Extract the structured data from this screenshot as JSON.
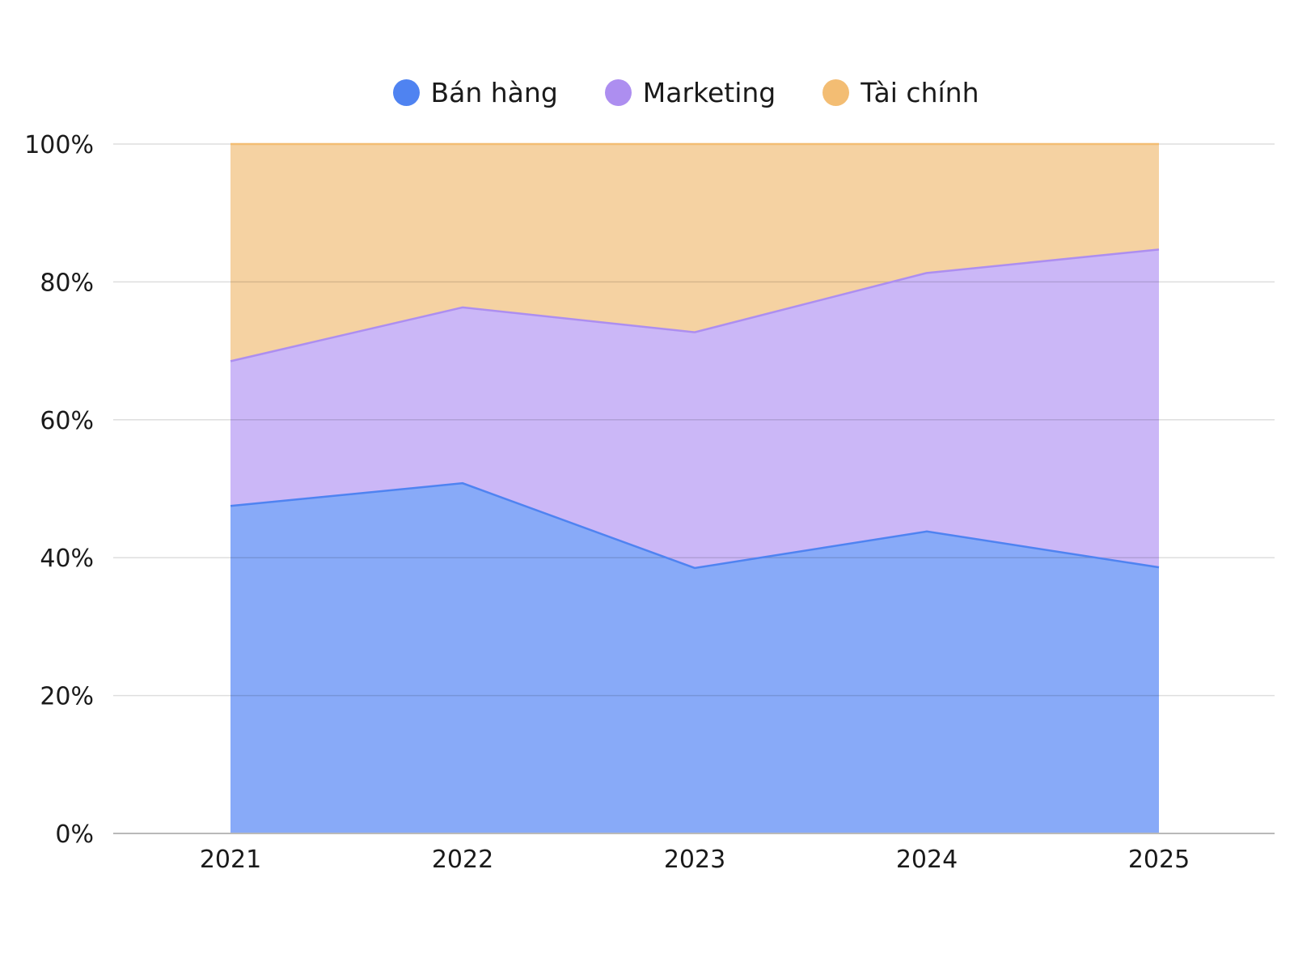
{
  "chart_data": {
    "type": "area",
    "stacked": "percent",
    "categories": [
      "2021",
      "2022",
      "2023",
      "2024",
      "2025"
    ],
    "series": [
      {
        "name": "Bán hàng",
        "color": "#4f83f1",
        "fill": "#88aaf8",
        "values": [
          47.5,
          50.8,
          38.5,
          43.8,
          38.6
        ]
      },
      {
        "name": "Marketing",
        "color": "#ad8ef0",
        "fill": "#cbb7f7",
        "values": [
          21.0,
          25.5,
          34.2,
          37.5,
          46.1
        ]
      },
      {
        "name": "Tài chính",
        "color": "#f3bd73",
        "fill": "#f5d2a2",
        "values": [
          31.5,
          23.7,
          27.3,
          18.7,
          15.3
        ]
      }
    ],
    "y_ticks": [
      "0%",
      "20%",
      "40%",
      "60%",
      "80%",
      "100%"
    ],
    "ylim": [
      0,
      100
    ],
    "grid": true,
    "legend_position": "top"
  }
}
